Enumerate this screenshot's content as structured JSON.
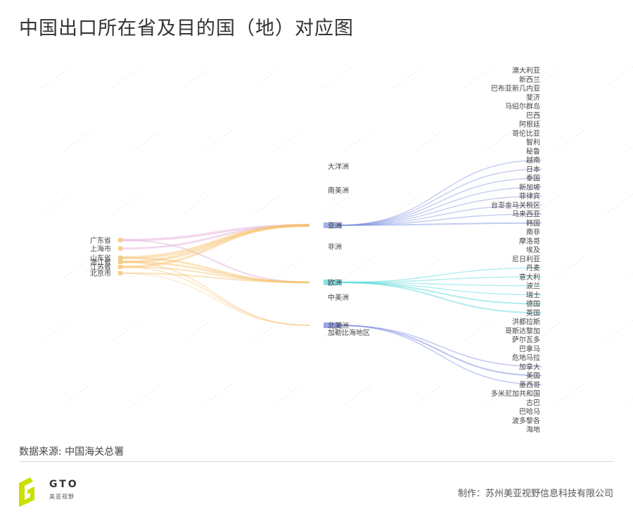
{
  "title": "中国出口所在省及目的国（地）对应图",
  "source": "数据来源: 中国海关总署",
  "credit": "制作：苏州美亚视野信息科技有限公司",
  "logo": {
    "text": "GTO",
    "sub": "美亚视野",
    "color": "#c9e000"
  },
  "colors": {
    "asia": "#7b8ee0",
    "europe": "#55d6d6",
    "namerica": "#6f7fe0",
    "province": "#f7c26b",
    "province_alt": "#e2a8d8"
  },
  "chart_data": {
    "type": "sankey",
    "provinces": [
      "广东省",
      "上海市",
      "山东省",
      "浙江省",
      "江苏省",
      "北京市"
    ],
    "continents": [
      "大洋洲",
      "南美洲",
      "亚洲",
      "非洲",
      "欧洲",
      "中美洲",
      "北美洲",
      "加勒比海地区"
    ],
    "countries": [
      "澳大利亚",
      "新西兰",
      "巴布亚新几内亚",
      "斐济",
      "马绍尔群岛",
      "巴西",
      "阿根廷",
      "哥伦比亚",
      "智利",
      "秘鲁",
      "越南",
      "日本",
      "泰国",
      "新加坡",
      "菲律宾",
      "台澎金马关税区",
      "马来西亚",
      "韩国",
      "南非",
      "摩洛哥",
      "埃及",
      "尼日利亚",
      "丹麦",
      "意大利",
      "波兰",
      "瑞士",
      "德国",
      "英国",
      "洪都拉斯",
      "哥斯达黎加",
      "萨尔瓦多",
      "巴拿马",
      "危地马拉",
      "加拿大",
      "美国",
      "墨西哥",
      "多米尼加共和国",
      "古巴",
      "巴哈马",
      "波多黎各",
      "海地"
    ],
    "links": [
      {
        "source": "广东省",
        "target": "亚洲",
        "value": 5
      },
      {
        "source": "广东省",
        "target": "欧洲",
        "value": 3
      },
      {
        "source": "上海市",
        "target": "亚洲",
        "value": 4
      },
      {
        "source": "山东省",
        "target": "亚洲",
        "value": 6
      },
      {
        "source": "山东省",
        "target": "欧洲",
        "value": 4
      },
      {
        "source": "浙江省",
        "target": "亚洲",
        "value": 6
      },
      {
        "source": "浙江省",
        "target": "欧洲",
        "value": 4
      },
      {
        "source": "浙江省",
        "target": "北美洲",
        "value": 2
      },
      {
        "source": "江苏省",
        "target": "亚洲",
        "value": 5
      },
      {
        "source": "江苏省",
        "target": "欧洲",
        "value": 3
      },
      {
        "source": "江苏省",
        "target": "北美洲",
        "value": 2
      },
      {
        "source": "北京市",
        "target": "欧洲",
        "value": 3
      },
      {
        "source": "北京市",
        "target": "北美洲",
        "value": 1
      },
      {
        "source": "亚洲",
        "target": "越南",
        "value": 2
      },
      {
        "source": "亚洲",
        "target": "日本",
        "value": 2
      },
      {
        "source": "亚洲",
        "target": "泰国",
        "value": 2
      },
      {
        "source": "亚洲",
        "target": "新加坡",
        "value": 2
      },
      {
        "source": "亚洲",
        "target": "菲律宾",
        "value": 2
      },
      {
        "source": "亚洲",
        "target": "台澎金马关税区",
        "value": 2
      },
      {
        "source": "亚洲",
        "target": "马来西亚",
        "value": 2
      },
      {
        "source": "亚洲",
        "target": "韩国",
        "value": 3
      },
      {
        "source": "欧洲",
        "target": "丹麦",
        "value": 2
      },
      {
        "source": "欧洲",
        "target": "意大利",
        "value": 2
      },
      {
        "source": "欧洲",
        "target": "波兰",
        "value": 2
      },
      {
        "source": "欧洲",
        "target": "瑞士",
        "value": 2
      },
      {
        "source": "欧洲",
        "target": "德国",
        "value": 3
      },
      {
        "source": "欧洲",
        "target": "英国",
        "value": 3
      },
      {
        "source": "北美洲",
        "target": "加拿大",
        "value": 2
      },
      {
        "source": "北美洲",
        "target": "美国",
        "value": 3
      },
      {
        "source": "北美洲",
        "target": "墨西哥",
        "value": 2
      }
    ]
  }
}
